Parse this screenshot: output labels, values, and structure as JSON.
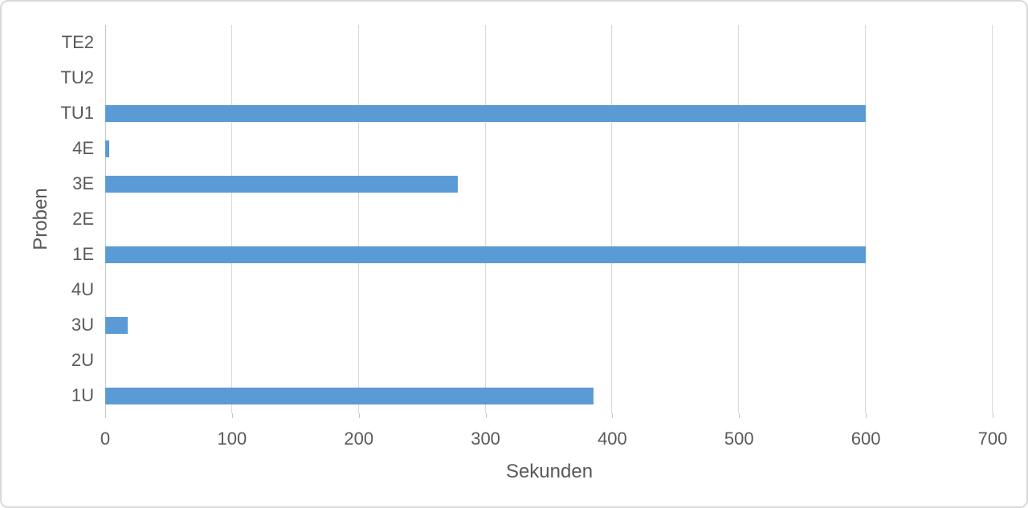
{
  "chart_data": {
    "type": "bar",
    "orientation": "horizontal",
    "title": "",
    "xlabel": "Sekunden",
    "ylabel": "Proben",
    "categories": [
      "TE2",
      "TU2",
      "TU1",
      "4E",
      "3E",
      "2E",
      "1E",
      "4U",
      "3U",
      "2U",
      "1U"
    ],
    "values": [
      0,
      0,
      600,
      3,
      278,
      0,
      600,
      0,
      18,
      0,
      385
    ],
    "xlim": [
      0,
      700
    ],
    "xticks": [
      0,
      100,
      200,
      300,
      400,
      500,
      600,
      700
    ],
    "grid": true,
    "legend": false
  },
  "colors": {
    "bar": "#5B9BD5",
    "gridline": "#D9D9D9",
    "axis_line": "#C6C6C6",
    "text": "#595959",
    "border": "#D9D9D9",
    "background": "#FFFFFF"
  }
}
